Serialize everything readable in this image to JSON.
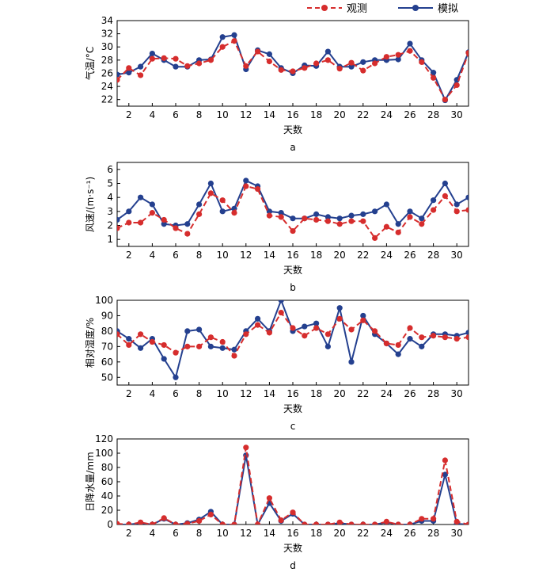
{
  "legend": {
    "observed_label": "观测",
    "simulated_label": "模拟"
  },
  "colors": {
    "observed": "#d62d2d",
    "simulated": "#24408f"
  },
  "chart_data": [
    {
      "type": "line",
      "panel": "a",
      "xlabel": "天数",
      "ylabel": "气温/°C",
      "xlim": [
        1,
        31
      ],
      "xticks": [
        2,
        4,
        6,
        8,
        10,
        12,
        14,
        16,
        18,
        20,
        22,
        24,
        26,
        28,
        30
      ],
      "ylim": [
        21,
        34
      ],
      "yticks": [
        22,
        24,
        26,
        28,
        30,
        32,
        34
      ],
      "x": [
        1,
        2,
        3,
        4,
        5,
        6,
        7,
        8,
        9,
        10,
        11,
        12,
        13,
        14,
        15,
        16,
        17,
        18,
        19,
        20,
        21,
        22,
        23,
        24,
        25,
        26,
        27,
        28,
        29,
        30,
        31
      ],
      "series": [
        {
          "name": "观测",
          "values": [
            25.0,
            26.8,
            25.7,
            28.2,
            28.3,
            28.2,
            27.1,
            27.5,
            28.0,
            30.0,
            30.9,
            27.1,
            29.3,
            27.8,
            26.5,
            26.3,
            26.8,
            27.5,
            28.0,
            26.7,
            27.6,
            26.4,
            27.5,
            28.5,
            28.8,
            29.4,
            27.7,
            25.3,
            22.0,
            24.2,
            29.1
          ]
        },
        {
          "name": "模拟",
          "values": [
            25.8,
            26.1,
            27.0,
            29.0,
            28.0,
            27.0,
            27.0,
            28.0,
            28.1,
            31.5,
            31.8,
            26.6,
            29.5,
            28.9,
            26.8,
            26.0,
            27.2,
            27.1,
            29.3,
            27.0,
            27.0,
            27.7,
            28.0,
            28.0,
            28.1,
            30.5,
            28.0,
            26.1,
            21.9,
            25.0,
            29.2
          ]
        }
      ]
    },
    {
      "type": "line",
      "panel": "b",
      "xlabel": "天数",
      "ylabel": "风速/(m·s⁻¹)",
      "xlim": [
        1,
        31
      ],
      "xticks": [
        2,
        4,
        6,
        8,
        10,
        12,
        14,
        16,
        18,
        20,
        22,
        24,
        26,
        28,
        30
      ],
      "ylim": [
        0.5,
        6.5
      ],
      "yticks": [
        1,
        2,
        3,
        4,
        5,
        6
      ],
      "x": [
        1,
        2,
        3,
        4,
        5,
        6,
        7,
        8,
        9,
        10,
        11,
        12,
        13,
        14,
        15,
        16,
        17,
        18,
        19,
        20,
        21,
        22,
        23,
        24,
        25,
        26,
        27,
        28,
        29,
        30,
        31
      ],
      "series": [
        {
          "name": "观测",
          "values": [
            1.8,
            2.2,
            2.2,
            2.9,
            2.4,
            1.8,
            1.4,
            2.8,
            4.3,
            3.8,
            2.9,
            4.8,
            4.6,
            2.7,
            2.6,
            1.6,
            2.5,
            2.4,
            2.3,
            2.1,
            2.3,
            2.3,
            1.1,
            1.9,
            1.5,
            2.6,
            2.1,
            3.1,
            4.1,
            3.0,
            3.1
          ]
        },
        {
          "name": "模拟",
          "values": [
            2.4,
            3.0,
            4.0,
            3.5,
            2.1,
            2.0,
            2.1,
            3.5,
            5.0,
            3.0,
            3.2,
            5.2,
            4.8,
            3.0,
            2.9,
            2.5,
            2.5,
            2.8,
            2.6,
            2.5,
            2.7,
            2.8,
            3.0,
            3.5,
            2.1,
            3.0,
            2.5,
            3.8,
            5.0,
            3.5,
            4.0
          ]
        }
      ]
    },
    {
      "type": "line",
      "panel": "c",
      "xlabel": "天数",
      "ylabel": "相对湿度/%",
      "xlim": [
        1,
        31
      ],
      "xticks": [
        2,
        4,
        6,
        8,
        10,
        12,
        14,
        16,
        18,
        20,
        22,
        24,
        26,
        28,
        30
      ],
      "ylim": [
        45,
        100
      ],
      "yticks": [
        50,
        60,
        70,
        80,
        90,
        100
      ],
      "x": [
        1,
        2,
        3,
        4,
        5,
        6,
        7,
        8,
        9,
        10,
        11,
        12,
        13,
        14,
        15,
        16,
        17,
        18,
        19,
        20,
        21,
        22,
        23,
        24,
        25,
        26,
        27,
        28,
        29,
        30,
        31
      ],
      "series": [
        {
          "name": "观测",
          "values": [
            78,
            71,
            78,
            73,
            71,
            66,
            70,
            70,
            76,
            73,
            64,
            78,
            84,
            79,
            92,
            82,
            77,
            82,
            78,
            88,
            81,
            87,
            80,
            72,
            71,
            82,
            76,
            77,
            76,
            75,
            76
          ]
        },
        {
          "name": "模拟",
          "values": [
            80,
            75,
            69,
            75,
            62,
            50,
            80,
            81,
            70,
            69,
            68,
            80,
            88,
            80,
            100,
            80,
            83,
            85,
            70,
            95,
            60,
            90,
            78,
            72,
            65,
            75,
            70,
            78,
            78,
            77,
            79
          ]
        }
      ]
    },
    {
      "type": "line",
      "panel": "d",
      "xlabel": "天数",
      "ylabel": "日降水量/mm",
      "xlim": [
        1,
        31
      ],
      "xticks": [
        2,
        4,
        6,
        8,
        10,
        12,
        14,
        16,
        18,
        20,
        22,
        24,
        26,
        28,
        30
      ],
      "ylim": [
        0,
        120
      ],
      "yticks": [
        0,
        20,
        40,
        60,
        80,
        100,
        120
      ],
      "x": [
        1,
        2,
        3,
        4,
        5,
        6,
        7,
        8,
        9,
        10,
        11,
        12,
        13,
        14,
        15,
        16,
        17,
        18,
        19,
        20,
        21,
        22,
        23,
        24,
        25,
        26,
        27,
        28,
        29,
        30,
        31
      ],
      "series": [
        {
          "name": "观测",
          "values": [
            1,
            0,
            3,
            0,
            9,
            0,
            1,
            5,
            14,
            0,
            0,
            108,
            0,
            37,
            6,
            17,
            0,
            0,
            0,
            3,
            0,
            0,
            0,
            4,
            0,
            0,
            8,
            8,
            90,
            4,
            0
          ]
        },
        {
          "name": "模拟",
          "values": [
            0,
            0,
            2,
            0,
            8,
            0,
            2,
            7,
            18,
            0,
            0,
            97,
            0,
            30,
            5,
            15,
            0,
            0,
            0,
            2,
            0,
            0,
            0,
            3,
            0,
            0,
            5,
            5,
            70,
            1,
            0
          ]
        }
      ]
    }
  ]
}
